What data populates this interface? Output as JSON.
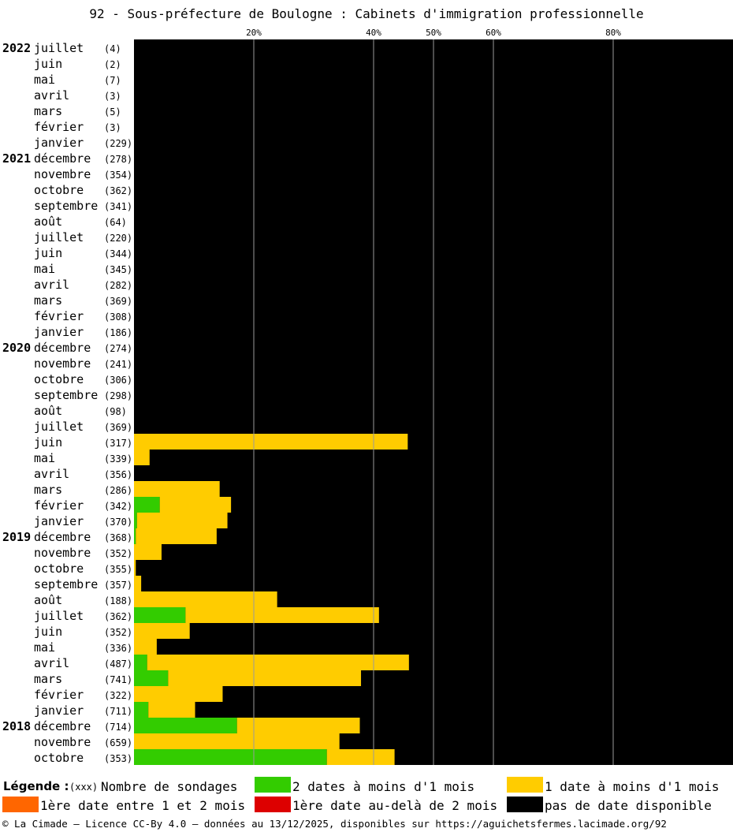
{
  "title": "92 - Sous-préfecture de Boulogne : Cabinets d'immigration professionnelle",
  "chart_data": {
    "type": "bar",
    "orientation": "horizontal",
    "stacked": true,
    "xlim": [
      0,
      100
    ],
    "x_ticks": [
      {
        "value": 20,
        "label": "20%"
      },
      {
        "value": 40,
        "label": "40%"
      },
      {
        "value": 50,
        "label": "50%"
      },
      {
        "value": 60,
        "label": "60%"
      },
      {
        "value": 80,
        "label": "80%"
      }
    ],
    "grid": true,
    "series": [
      {
        "key": "green",
        "name": "2 dates à moins d'1 mois",
        "color": "#33cc00"
      },
      {
        "key": "yellow",
        "name": "1 date à moins d'1 mois",
        "color": "#ffcc00"
      },
      {
        "key": "orange",
        "name": "1ère date entre 1 et 2 mois",
        "color": "#ff6600"
      },
      {
        "key": "red",
        "name": "1ère date au-delà de 2 mois",
        "color": "#dd0000"
      },
      {
        "key": "black",
        "name": "pas de date disponible",
        "color": "#000000"
      }
    ],
    "rows": [
      {
        "year": "2022",
        "month": "juillet",
        "count": "(4)",
        "green": 0,
        "yellow": 0
      },
      {
        "year": "",
        "month": "juin",
        "count": "(2)",
        "green": 0,
        "yellow": 0
      },
      {
        "year": "",
        "month": "mai",
        "count": "(7)",
        "green": 0,
        "yellow": 0
      },
      {
        "year": "",
        "month": "avril",
        "count": "(3)",
        "green": 0,
        "yellow": 0
      },
      {
        "year": "",
        "month": "mars",
        "count": "(5)",
        "green": 0,
        "yellow": 0
      },
      {
        "year": "",
        "month": "février",
        "count": "(3)",
        "green": 0,
        "yellow": 0
      },
      {
        "year": "",
        "month": "janvier",
        "count": "(229)",
        "green": 0,
        "yellow": 0
      },
      {
        "year": "2021",
        "month": "décembre",
        "count": "(278)",
        "green": 0,
        "yellow": 0
      },
      {
        "year": "",
        "month": "novembre",
        "count": "(354)",
        "green": 0,
        "yellow": 0
      },
      {
        "year": "",
        "month": "octobre",
        "count": "(362)",
        "green": 0,
        "yellow": 0
      },
      {
        "year": "",
        "month": "septembre",
        "count": "(341)",
        "green": 0,
        "yellow": 0
      },
      {
        "year": "",
        "month": "août",
        "count": "(64)",
        "green": 0,
        "yellow": 0
      },
      {
        "year": "",
        "month": "juillet",
        "count": "(220)",
        "green": 0,
        "yellow": 0
      },
      {
        "year": "",
        "month": "juin",
        "count": "(344)",
        "green": 0,
        "yellow": 0
      },
      {
        "year": "",
        "month": "mai",
        "count": "(345)",
        "green": 0,
        "yellow": 0
      },
      {
        "year": "",
        "month": "avril",
        "count": "(282)",
        "green": 0,
        "yellow": 0
      },
      {
        "year": "",
        "month": "mars",
        "count": "(369)",
        "green": 0,
        "yellow": 0
      },
      {
        "year": "",
        "month": "février",
        "count": "(308)",
        "green": 0,
        "yellow": 0
      },
      {
        "year": "",
        "month": "janvier",
        "count": "(186)",
        "green": 0,
        "yellow": 0
      },
      {
        "year": "2020",
        "month": "décembre",
        "count": "(274)",
        "green": 0,
        "yellow": 0
      },
      {
        "year": "",
        "month": "novembre",
        "count": "(241)",
        "green": 0,
        "yellow": 0
      },
      {
        "year": "",
        "month": "octobre",
        "count": "(306)",
        "green": 0,
        "yellow": 0
      },
      {
        "year": "",
        "month": "septembre",
        "count": "(298)",
        "green": 0,
        "yellow": 0
      },
      {
        "year": "",
        "month": "août",
        "count": "(98)",
        "green": 0,
        "yellow": 0
      },
      {
        "year": "",
        "month": "juillet",
        "count": "(369)",
        "green": 0,
        "yellow": 0
      },
      {
        "year": "",
        "month": "juin",
        "count": "(317)",
        "green": 0,
        "yellow": 45.7
      },
      {
        "year": "",
        "month": "mai",
        "count": "(339)",
        "green": 0,
        "yellow": 2.6
      },
      {
        "year": "",
        "month": "avril",
        "count": "(356)",
        "green": 0,
        "yellow": 0
      },
      {
        "year": "",
        "month": "mars",
        "count": "(286)",
        "green": 0,
        "yellow": 14.3
      },
      {
        "year": "",
        "month": "février",
        "count": "(342)",
        "green": 4.3,
        "yellow": 11.9
      },
      {
        "year": "",
        "month": "janvier",
        "count": "(370)",
        "green": 0.5,
        "yellow": 15.1
      },
      {
        "year": "2019",
        "month": "décembre",
        "count": "(368)",
        "green": 0.3,
        "yellow": 13.5
      },
      {
        "year": "",
        "month": "novembre",
        "count": "(352)",
        "green": 0,
        "yellow": 4.6
      },
      {
        "year": "",
        "month": "octobre",
        "count": "(355)",
        "green": 0,
        "yellow": 0.3
      },
      {
        "year": "",
        "month": "septembre",
        "count": "(357)",
        "green": 0,
        "yellow": 1.2
      },
      {
        "year": "",
        "month": "août",
        "count": "(188)",
        "green": 0,
        "yellow": 23.9
      },
      {
        "year": "",
        "month": "juillet",
        "count": "(362)",
        "green": 8.6,
        "yellow": 32.3
      },
      {
        "year": "",
        "month": "juin",
        "count": "(352)",
        "green": 0,
        "yellow": 9.3
      },
      {
        "year": "",
        "month": "mai",
        "count": "(336)",
        "green": 0,
        "yellow": 3.8
      },
      {
        "year": "",
        "month": "avril",
        "count": "(487)",
        "green": 2.2,
        "yellow": 43.7
      },
      {
        "year": "",
        "month": "mars",
        "count": "(741)",
        "green": 5.7,
        "yellow": 32.2
      },
      {
        "year": "",
        "month": "février",
        "count": "(322)",
        "green": 0,
        "yellow": 14.8
      },
      {
        "year": "",
        "month": "janvier",
        "count": "(711)",
        "green": 2.4,
        "yellow": 7.8
      },
      {
        "year": "2018",
        "month": "décembre",
        "count": "(714)",
        "green": 17.2,
        "yellow": 20.5
      },
      {
        "year": "",
        "month": "novembre",
        "count": "(659)",
        "green": 0,
        "yellow": 34.3
      },
      {
        "year": "",
        "month": "octobre",
        "count": "(353)",
        "green": 32.2,
        "yellow": 11.3
      }
    ]
  },
  "legend": {
    "title": "Légende :",
    "count_hint": "(xxx)",
    "count_label": "Nombre de sondages"
  },
  "footer": "© La Cimade — Licence CC-By 4.0 — données au 13/12/2025, disponibles sur https://aguichetsfermes.lacimade.org/92"
}
